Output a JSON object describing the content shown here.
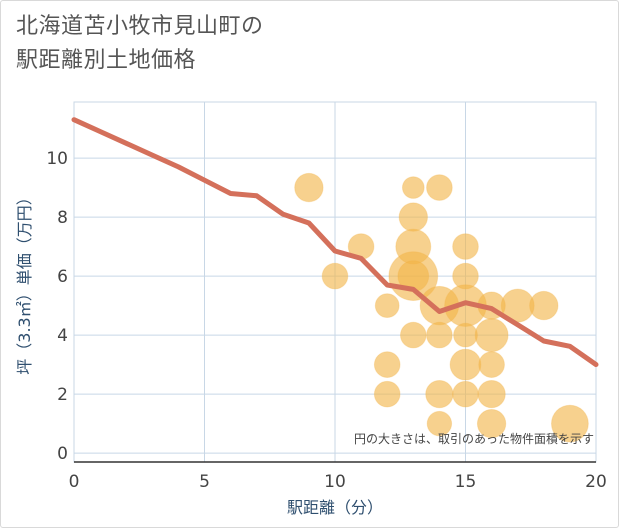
{
  "chart_data": {
    "type": "scatter",
    "title_line1": "北海道苫小牧市見山町の",
    "title_line2": "駅距離別土地価格",
    "xlabel": "駅距離（分）",
    "ylabel": "坪（3.3㎡）単価（万円）",
    "note": "円の大きさは、取引のあった物件面積を示す",
    "xlim": [
      0,
      20
    ],
    "ylim": [
      -0.3,
      11.9
    ],
    "xticks": [
      0,
      5,
      10,
      15,
      20
    ],
    "yticks": [
      0,
      2,
      4,
      6,
      8,
      10
    ],
    "grid": true,
    "colors": {
      "bubble": "#f2b449",
      "line": "#d4705b",
      "grid": "#c8d7e6",
      "axis": "#333333"
    },
    "scatter_points": [
      {
        "x": 9,
        "y": 9,
        "size": 2
      },
      {
        "x": 10,
        "y": 6,
        "size": 1.5
      },
      {
        "x": 11,
        "y": 7,
        "size": 1.5
      },
      {
        "x": 12,
        "y": 5,
        "size": 1.2
      },
      {
        "x": 12,
        "y": 3,
        "size": 1.5
      },
      {
        "x": 12,
        "y": 2,
        "size": 1.5
      },
      {
        "x": 13,
        "y": 9,
        "size": 0.9
      },
      {
        "x": 13,
        "y": 8,
        "size": 2
      },
      {
        "x": 13,
        "y": 7,
        "size": 3.5
      },
      {
        "x": 13,
        "y": 6,
        "size": 8
      },
      {
        "x": 13,
        "y": 6,
        "size": 2.5
      },
      {
        "x": 13,
        "y": 4,
        "size": 1.5
      },
      {
        "x": 14,
        "y": 9,
        "size": 1.5
      },
      {
        "x": 14,
        "y": 5,
        "size": 4.5
      },
      {
        "x": 14,
        "y": 4,
        "size": 1.5
      },
      {
        "x": 14,
        "y": 2,
        "size": 1.8
      },
      {
        "x": 14,
        "y": 1,
        "size": 1.3
      },
      {
        "x": 15,
        "y": 7,
        "size": 1.5
      },
      {
        "x": 15,
        "y": 6,
        "size": 1.5
      },
      {
        "x": 15,
        "y": 5,
        "size": 5.5
      },
      {
        "x": 15,
        "y": 4,
        "size": 1.2
      },
      {
        "x": 15,
        "y": 3,
        "size": 2.5
      },
      {
        "x": 15,
        "y": 2,
        "size": 1.5
      },
      {
        "x": 16,
        "y": 5,
        "size": 1.8
      },
      {
        "x": 16,
        "y": 4,
        "size": 3
      },
      {
        "x": 16,
        "y": 3,
        "size": 1.5
      },
      {
        "x": 16,
        "y": 2,
        "size": 1.8
      },
      {
        "x": 16,
        "y": 1,
        "size": 2
      },
      {
        "x": 17,
        "y": 5,
        "size": 3
      },
      {
        "x": 18,
        "y": 5,
        "size": 2
      },
      {
        "x": 19,
        "y": 1,
        "size": 4
      }
    ],
    "line_series": {
      "x": [
        0,
        1,
        2,
        3,
        4,
        5,
        6,
        7,
        8,
        9,
        10,
        11,
        12,
        13,
        14,
        15,
        16,
        17,
        18,
        19,
        20
      ],
      "y": [
        11.3,
        10.9,
        10.5,
        10.1,
        9.7,
        9.25,
        8.8,
        8.72,
        8.1,
        7.8,
        6.85,
        6.6,
        5.7,
        5.55,
        4.8,
        5.1,
        4.9,
        4.35,
        3.8,
        3.62,
        3.0
      ]
    }
  }
}
